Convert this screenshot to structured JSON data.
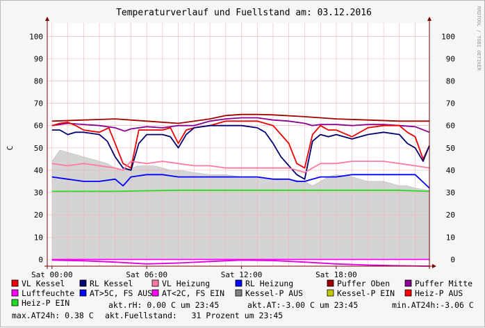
{
  "chart_data": {
    "type": "line",
    "title": "Temperaturverlauf und Fuellstand am: 03.12.2016",
    "ylabel": "C",
    "ylim": [
      -3,
      106
    ],
    "yticks": [
      0,
      10,
      20,
      30,
      40,
      50,
      60,
      70,
      80,
      90,
      100
    ],
    "x_unit": "hours",
    "xlim": [
      -0.3,
      23.9
    ],
    "xticks": [
      {
        "x": 0,
        "label": "Sat 00:00"
      },
      {
        "x": 6,
        "label": "Sat 06:00"
      },
      {
        "x": 12,
        "label": "Sat 12:00"
      },
      {
        "x": 18,
        "label": "Sat 18:00"
      }
    ],
    "grid": true,
    "watermark": "RRDTOOL / TOBI OETIKER",
    "fill_level": {
      "name": "Fuellstand",
      "color": "#d4d4d4",
      "x": [
        0,
        0.5,
        1,
        1.5,
        2,
        2.5,
        3,
        3.5,
        4,
        4.5,
        5,
        5.5,
        6,
        6.5,
        7,
        7.5,
        8,
        9,
        10,
        11,
        12,
        13,
        14,
        15,
        16,
        16.5,
        17,
        17.5,
        18,
        19,
        20,
        21,
        22,
        22.5,
        23,
        23.9
      ],
      "values": [
        44,
        49,
        48,
        47,
        46,
        45,
        44,
        43,
        41,
        40,
        41,
        42,
        42,
        42,
        41,
        40,
        40,
        39,
        38,
        38,
        37,
        37,
        36,
        36,
        35,
        33,
        35,
        37,
        38,
        37,
        35,
        35,
        33,
        33,
        32,
        31
      ]
    },
    "series": [
      {
        "name": "Puffer Oben",
        "color": "#a00000",
        "x": [
          0,
          2,
          4,
          6,
          8,
          10,
          11,
          12,
          13,
          14,
          16,
          18,
          20,
          22,
          23.9
        ],
        "values": [
          62,
          62.5,
          63,
          62,
          61,
          63,
          64.5,
          65,
          65,
          64.8,
          64,
          63,
          62.5,
          62,
          62
        ]
      },
      {
        "name": "Puffer Mitte",
        "color": "#8a0090",
        "x": [
          0,
          1,
          2,
          3,
          4,
          4.6,
          5,
          6,
          7,
          8,
          9,
          10,
          11,
          12,
          13,
          14,
          15,
          16,
          16.5,
          17,
          18,
          19,
          20,
          21,
          22,
          23,
          23.9
        ],
        "values": [
          60,
          61,
          60.5,
          60,
          59,
          57.5,
          58.5,
          59.5,
          59,
          60,
          60,
          62,
          63,
          63.5,
          63.5,
          62.5,
          62,
          61,
          60,
          60.5,
          60.5,
          60,
          60.5,
          60.5,
          60,
          59.5,
          57
        ]
      },
      {
        "name": "VL Kessel",
        "color": "#ee0000",
        "x": [
          0,
          0.5,
          1,
          1.5,
          2,
          3,
          3.6,
          4,
          4.5,
          5,
          5.5,
          6,
          7,
          7.5,
          8,
          8.5,
          9,
          10,
          11,
          12,
          13,
          13.5,
          14,
          14.5,
          15,
          15.5,
          16,
          16.5,
          17,
          17.5,
          18,
          19,
          20,
          21,
          22,
          22.5,
          23,
          23.5,
          23.9
        ],
        "values": [
          60,
          61,
          61.5,
          60,
          58,
          57,
          59,
          52,
          43,
          41,
          58,
          58,
          58,
          59,
          52,
          58,
          59,
          60,
          62,
          62,
          62,
          61,
          60,
          56,
          52,
          43,
          41,
          56,
          60,
          58,
          58,
          55,
          59,
          60,
          60,
          57,
          55,
          45,
          51
        ]
      },
      {
        "name": "RL Kessel",
        "color": "#000070",
        "x": [
          0,
          0.5,
          1,
          1.5,
          2,
          3,
          3.5,
          4,
          4.5,
          5,
          5.5,
          6,
          7,
          7.5,
          8,
          8.5,
          9,
          10,
          11,
          12,
          13,
          13.5,
          14,
          14.5,
          15,
          15.5,
          16,
          16.5,
          17,
          17.5,
          18,
          19,
          20,
          21,
          22,
          22.5,
          23,
          23.5,
          23.9
        ],
        "values": [
          58,
          58,
          56,
          57,
          57,
          56,
          53,
          46,
          41,
          40,
          52,
          56,
          56,
          55,
          50,
          56,
          59,
          60,
          60,
          60,
          59,
          57,
          52,
          46,
          42,
          38,
          36,
          53,
          56,
          55,
          56,
          54,
          56,
          57,
          56,
          52,
          50,
          44,
          51
        ]
      },
      {
        "name": "VL Heizung",
        "color": "#ff7aa0",
        "x": [
          0,
          1,
          2,
          3,
          4,
          4.5,
          5,
          6,
          7,
          8,
          9,
          10,
          11,
          12,
          13,
          14,
          15,
          15.5,
          16,
          17,
          18,
          19,
          20,
          21,
          22,
          23,
          23.9
        ],
        "values": [
          43,
          42,
          43,
          42,
          41,
          40,
          44,
          43,
          44,
          43,
          42,
          42,
          41,
          41,
          41,
          41,
          41,
          40,
          39,
          43,
          43,
          44,
          44,
          44,
          43,
          42,
          41
        ]
      },
      {
        "name": "RL Heizung",
        "color": "#0000ff",
        "x": [
          0,
          1,
          2,
          3,
          4,
          4.5,
          5,
          6,
          7,
          8,
          9,
          10,
          11,
          12,
          13,
          14,
          15,
          15.5,
          16,
          17,
          18,
          19,
          20,
          21,
          22,
          23,
          23.9
        ],
        "values": [
          37,
          36,
          35,
          35,
          36,
          33,
          37,
          38,
          38,
          37,
          37,
          37,
          37,
          37,
          37,
          36,
          36,
          35,
          35,
          37,
          37,
          38,
          38,
          38,
          38,
          38,
          32
        ]
      },
      {
        "name": "Heiz-P EIN",
        "color": "#22dd22",
        "x": [
          0,
          2,
          4,
          6,
          8,
          10,
          12,
          14,
          16,
          18,
          20,
          22,
          23.9
        ],
        "values": [
          30.5,
          30.5,
          30.5,
          30.8,
          31,
          31,
          31,
          31,
          31,
          31,
          31,
          31,
          30.5
        ]
      },
      {
        "name": "Luftfeuchte",
        "color": "#ff00ff",
        "x": [
          0,
          23.9
        ],
        "values": [
          0,
          0
        ]
      },
      {
        "name": "AT<2C, FS EIN",
        "color": "#dd00dd",
        "x": [
          0,
          2,
          4,
          6,
          8,
          10,
          12,
          14,
          16,
          18,
          20,
          22,
          23.9
        ],
        "values": [
          -0.3,
          -0.6,
          -1.2,
          -2.0,
          -1.6,
          -0.9,
          -0.3,
          -0.5,
          -1.2,
          -2.0,
          -2.5,
          -2.8,
          -3.0
        ]
      }
    ],
    "legend": [
      {
        "label": "VL Kessel",
        "color": "#ee0000"
      },
      {
        "label": "RL Kessel",
        "color": "#000070"
      },
      {
        "label": "VL Heizung",
        "color": "#ff7aa0"
      },
      {
        "label": "RL Heizung",
        "color": "#0000ff"
      },
      {
        "label": "Puffer Oben",
        "color": "#a00000"
      },
      {
        "label": "Puffer Mitte",
        "color": "#8a0090"
      },
      {
        "label": "Luftfeuchte",
        "color": "#ff00ff"
      },
      {
        "label": "AT>5C, FS AUS",
        "color": "#0000ff"
      },
      {
        "label": "AT<2C, FS EIN",
        "color": "#ff00ff"
      },
      {
        "label": "Kessel-P AUS",
        "color": "#808080"
      },
      {
        "label": "Kessel-P EIN",
        "color": "#c8c800"
      },
      {
        "label": "Heiz-P AUS",
        "color": "#ff0000"
      },
      {
        "label": "Heiz-P EIN",
        "color": "#22dd22"
      }
    ],
    "footer": {
      "rh": "akt.rH: 0.00 C um 23:45",
      "at": "akt.AT:-3.00 C um 23:45",
      "min_at": "min.AT24h:-3.06 C",
      "max_at": "max.AT24h: 0.38 C",
      "fuellstand": "akt.Fuellstand:   31 Prozent um 23:45"
    }
  }
}
